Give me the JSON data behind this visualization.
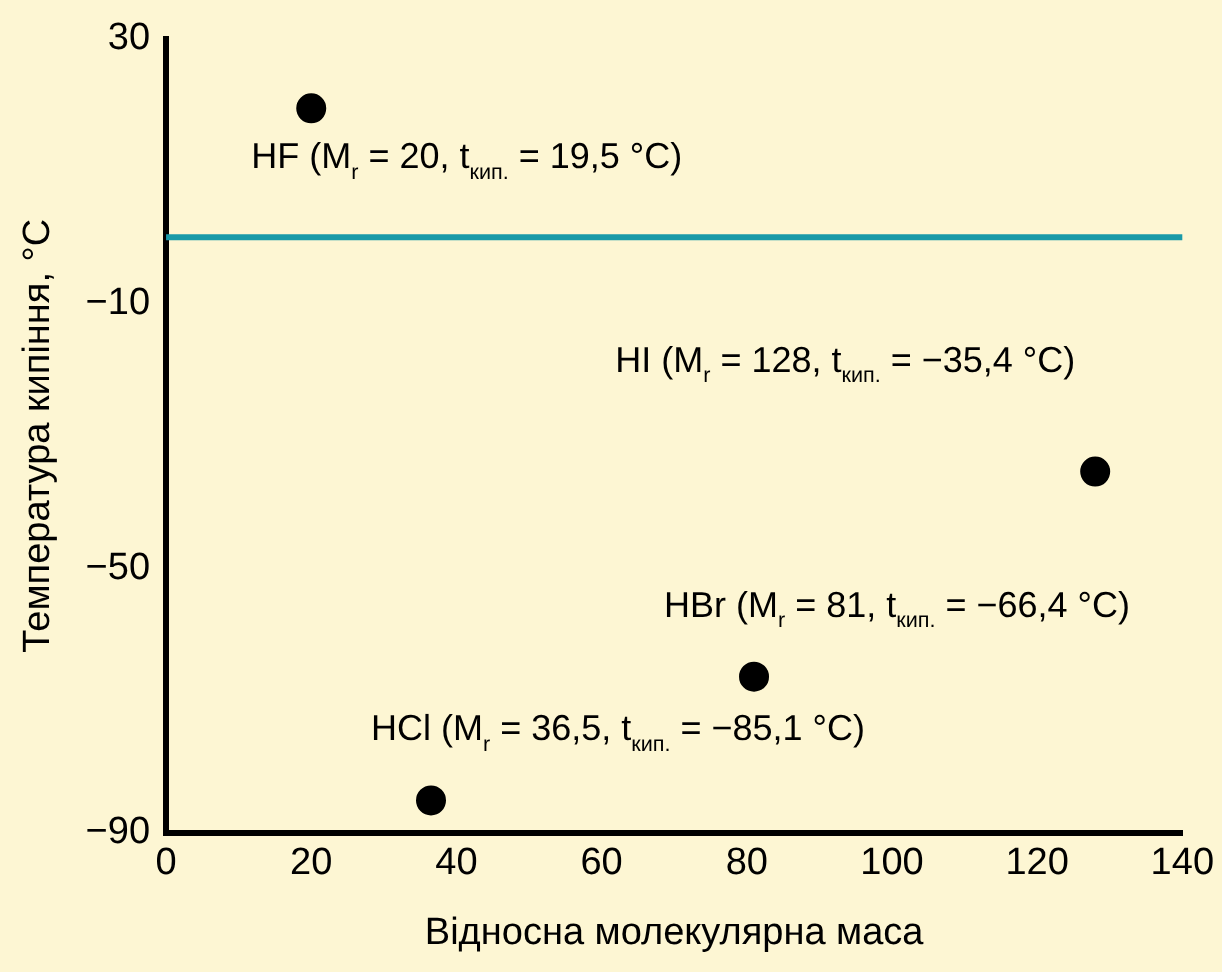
{
  "chart_data": {
    "type": "scatter",
    "xlabel": "Відносна молекулярна маса",
    "ylabel": "Температура кипіння, °C",
    "x": [
      20,
      36.5,
      81,
      128
    ],
    "series": [
      {
        "color": "#000000",
        "values": [
          19.5,
          -85.1,
          -66.4,
          -35.4
        ]
      }
    ],
    "xlim": [
      0,
      140
    ],
    "xticks": [
      0,
      20,
      40,
      60,
      80,
      100,
      120,
      140
    ],
    "ylim": [
      -90,
      30
    ],
    "yticks": [
      {
        "value": -90,
        "label": "−90"
      },
      {
        "value": -50,
        "label": "−50"
      },
      {
        "value": -10,
        "label": "−10"
      },
      30
    ],
    "ref_lines": [
      {
        "axis": "y",
        "value": 0,
        "color": "#1a9aa8"
      }
    ],
    "grid": false,
    "legend": false,
    "marker": "circle",
    "annotations": [
      {
        "text": "HF (M$_{r}$ = 20, t$_{кип.}$ = 19,5 °C)",
        "x": 20,
        "y": 19.5
      },
      {
        "text": "HCl (M$_{r}$ = 36,5, t$_{кип.}$ = −85,1 °C)",
        "x": 36.5,
        "y": -85.1
      },
      {
        "text": "HBr (M$_{r}$ = 81, t$_{кип.}$ = −66,4 °C)",
        "x": 81,
        "y": -66.4
      },
      {
        "text": "HI (M$_{r}$ = 128, t$_{кип.}$ = −35,4 °C)",
        "x": 128,
        "y": -35.4
      }
    ]
  }
}
